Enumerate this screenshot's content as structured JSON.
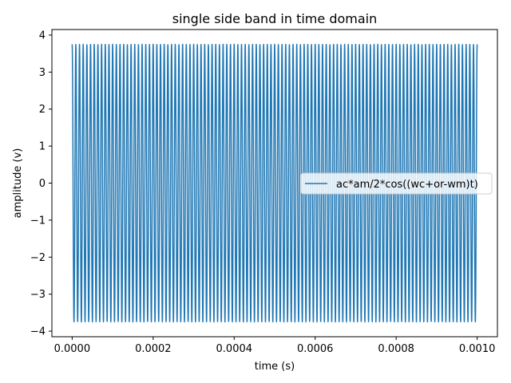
{
  "chart_data": {
    "type": "line",
    "title": "single side band in time domain",
    "xlabel": "time (s)",
    "ylabel": "amplitude (v)",
    "xlim": [
      -5e-05,
      0.00105
    ],
    "ylim": [
      -4.15,
      4.15
    ],
    "xticks": [
      0.0,
      0.0002,
      0.0004,
      0.0006,
      0.0008,
      0.001
    ],
    "xtick_labels": [
      "0.0000",
      "0.0002",
      "0.0004",
      "0.0006",
      "0.0008",
      "0.0010"
    ],
    "yticks": [
      -4,
      -3,
      -2,
      -1,
      0,
      1,
      2,
      3,
      4
    ],
    "ytick_labels": [
      "−4",
      "−3",
      "−2",
      "−1",
      "0",
      "1",
      "2",
      "3",
      "4"
    ],
    "grid": false,
    "legend": {
      "location": "center-right",
      "entries": [
        "ac*am/2*cos((wc+or-wm)t)"
      ]
    },
    "series": [
      {
        "name": "ac*am/2*cos((wc+or-wm)t)",
        "color": "#1f77b4",
        "function": "cosine",
        "amplitude": 3.75,
        "frequency_hz": 110000,
        "t_start": 0.0,
        "t_end": 0.001
      }
    ]
  }
}
